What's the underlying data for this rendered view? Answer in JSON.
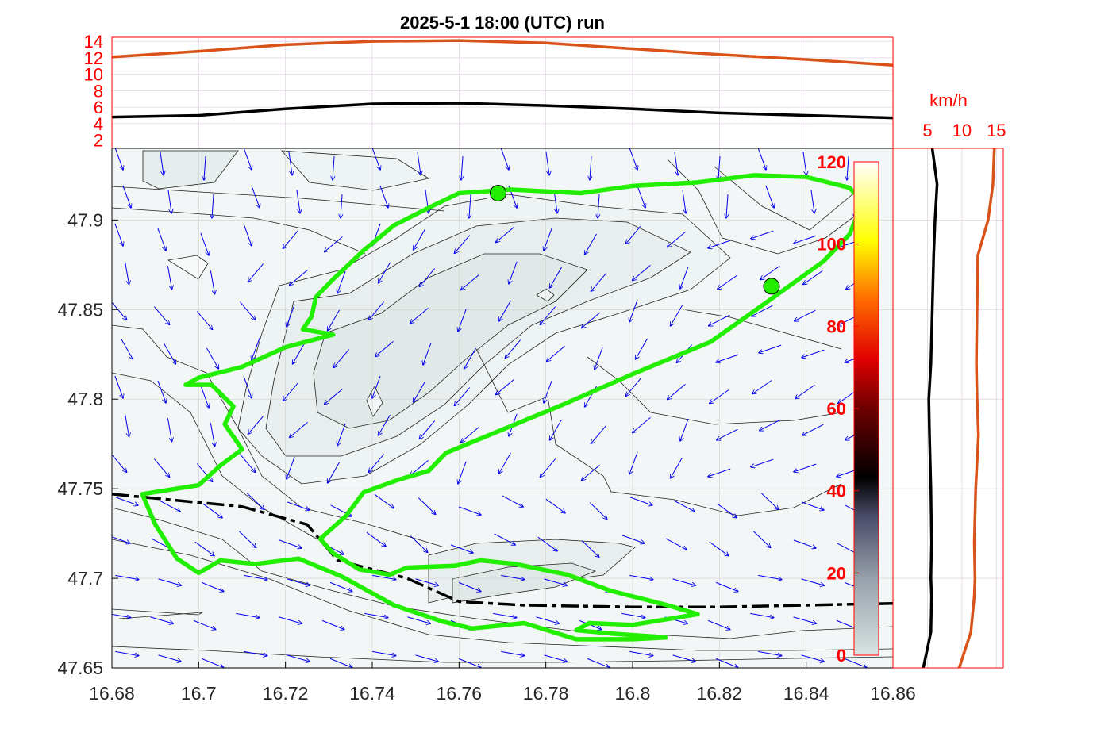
{
  "chart_data": {
    "title": "2025-5-1  18:00 (UTC) run",
    "colors": {
      "green_track": "#22ee00",
      "dashed_border": "#000000",
      "wind_arrows": "#0000ee",
      "orange_series": "#d95319",
      "black_series": "#000000",
      "tick_red": "#ff0000",
      "contour_fill_light": "#f3f6f6",
      "contour_fill_mid": "#e8eeee",
      "contour_fill_dark": "#dbe5e3"
    },
    "main_map": {
      "type": "contour",
      "xlim": [
        16.68,
        16.86
      ],
      "ylim": [
        47.65,
        47.94
      ],
      "x_ticks": [
        "16.68",
        "16.7",
        "16.72",
        "16.74",
        "16.76",
        "16.78",
        "16.8",
        "16.82",
        "16.84",
        "16.86"
      ],
      "y_ticks": [
        "47.65",
        "47.7",
        "47.75",
        "47.8",
        "47.85",
        "47.9"
      ],
      "track": [
        [
          16.808,
          47.667
        ],
        [
          16.796,
          47.669
        ],
        [
          16.787,
          47.671
        ],
        [
          16.79,
          47.675
        ],
        [
          16.8,
          47.674
        ],
        [
          16.815,
          47.68
        ],
        [
          16.808,
          47.685
        ],
        [
          16.795,
          47.693
        ],
        [
          16.785,
          47.702
        ],
        [
          16.773,
          47.708
        ],
        [
          16.765,
          47.71
        ],
        [
          16.759,
          47.707
        ],
        [
          16.748,
          47.706
        ],
        [
          16.744,
          47.702
        ],
        [
          16.737,
          47.705
        ],
        [
          16.731,
          47.714
        ],
        [
          16.728,
          47.722
        ],
        [
          16.734,
          47.735
        ],
        [
          16.738,
          47.748
        ],
        [
          16.746,
          47.755
        ],
        [
          16.753,
          47.76
        ],
        [
          16.757,
          47.77
        ],
        [
          16.77,
          47.783
        ],
        [
          16.784,
          47.797
        ],
        [
          16.8,
          47.814
        ],
        [
          16.818,
          47.832
        ],
        [
          16.832,
          47.856
        ],
        [
          16.844,
          47.877
        ],
        [
          16.85,
          47.892
        ],
        [
          16.853,
          47.91
        ],
        [
          16.85,
          47.918
        ],
        [
          16.84,
          47.924
        ],
        [
          16.828,
          47.925
        ],
        [
          16.815,
          47.921
        ],
        [
          16.8,
          47.919
        ],
        [
          16.788,
          47.915
        ],
        [
          16.772,
          47.917
        ],
        [
          16.76,
          47.915
        ],
        [
          16.754,
          47.908
        ],
        [
          16.745,
          47.897
        ],
        [
          16.738,
          47.883
        ],
        [
          16.731,
          47.867
        ],
        [
          16.727,
          47.857
        ],
        [
          16.726,
          47.846
        ],
        [
          16.724,
          47.839
        ],
        [
          16.731,
          47.836
        ],
        [
          16.72,
          47.829
        ],
        [
          16.71,
          47.818
        ],
        [
          16.7,
          47.812
        ],
        [
          16.697,
          47.808
        ],
        [
          16.703,
          47.808
        ],
        [
          16.708,
          47.796
        ],
        [
          16.706,
          47.786
        ],
        [
          16.71,
          47.772
        ],
        [
          16.705,
          47.763
        ],
        [
          16.7,
          47.752
        ],
        [
          16.687,
          47.747
        ],
        [
          16.69,
          47.73
        ],
        [
          16.695,
          47.711
        ],
        [
          16.7,
          47.703
        ],
        [
          16.705,
          47.71
        ],
        [
          16.713,
          47.708
        ],
        [
          16.723,
          47.711
        ],
        [
          16.733,
          47.701
        ],
        [
          16.745,
          47.685
        ],
        [
          16.756,
          47.676
        ],
        [
          16.763,
          47.672
        ],
        [
          16.775,
          47.675
        ],
        [
          16.787,
          47.666
        ],
        [
          16.8,
          47.666
        ],
        [
          16.808,
          47.667
        ]
      ],
      "border": [
        [
          16.68,
          47.747
        ],
        [
          16.71,
          47.74
        ],
        [
          16.725,
          47.73
        ],
        [
          16.732,
          47.71
        ],
        [
          16.748,
          47.7
        ],
        [
          16.76,
          47.687
        ],
        [
          16.775,
          47.685
        ],
        [
          16.8,
          47.684
        ],
        [
          16.82,
          47.684
        ],
        [
          16.84,
          47.685
        ],
        [
          16.86,
          47.686
        ]
      ],
      "markers": [
        [
          16.769,
          47.915
        ],
        [
          16.832,
          47.863
        ]
      ],
      "wind_arrows": [
        [
          0.0,
          0.8
        ],
        [
          0.0,
          0.9
        ],
        [
          0.0,
          0.5
        ],
        [
          0.0,
          1.0
        ],
        [
          0.0,
          0.0
        ],
        [
          0.0,
          0.0
        ]
      ]
    },
    "top_panel": {
      "type": "line",
      "ylim": [
        1,
        14.5
      ],
      "y_ticks": [
        "2",
        "4",
        "6",
        "8",
        "10",
        "12",
        "14"
      ],
      "x": [
        16.68,
        16.7,
        16.72,
        16.74,
        16.76,
        16.78,
        16.8,
        16.82,
        16.84,
        16.86
      ],
      "series_orange": [
        12.1,
        12.8,
        13.6,
        14.0,
        14.1,
        13.8,
        13.1,
        12.4,
        11.8,
        11.1
      ],
      "series_black": [
        4.8,
        5.0,
        5.8,
        6.4,
        6.5,
        6.2,
        5.8,
        5.3,
        5.0,
        4.7
      ]
    },
    "right_panel": {
      "type": "line",
      "unit_label": "km/h",
      "xlim": [
        0,
        16
      ],
      "x_ticks": [
        "5",
        "10",
        "15"
      ],
      "y": [
        47.65,
        47.67,
        47.69,
        47.7,
        47.72,
        47.75,
        47.78,
        47.8,
        47.82,
        47.85,
        47.88,
        47.9,
        47.92,
        47.94
      ],
      "series_black": [
        4.4,
        5.5,
        5.6,
        5.5,
        5.6,
        5.5,
        5.3,
        5.2,
        5.5,
        5.7,
        5.9,
        6.1,
        6.4,
        5.7
      ],
      "series_orange": [
        9.6,
        11.3,
        11.8,
        11.9,
        11.8,
        12.0,
        12.4,
        12.2,
        12.1,
        12.2,
        12.3,
        13.8,
        14.5,
        14.7
      ]
    },
    "colorbar": {
      "ticks": [
        "0",
        "20",
        "40",
        "60",
        "80",
        "100",
        "120"
      ],
      "range": [
        0,
        120
      ]
    }
  }
}
